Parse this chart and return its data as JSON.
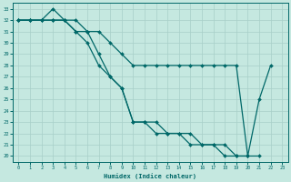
{
  "xlabel": "Humidex (Indice chaleur)",
  "bg_color": "#c5e8e0",
  "grid_color": "#a8cfc8",
  "line_color": "#006868",
  "xlim": [
    0,
    23
  ],
  "ylim": [
    19.5,
    33.5
  ],
  "xticks": [
    0,
    1,
    2,
    3,
    4,
    5,
    6,
    7,
    8,
    9,
    10,
    11,
    12,
    13,
    14,
    15,
    16,
    17,
    18,
    19,
    20,
    21,
    22,
    23
  ],
  "yticks": [
    20,
    21,
    22,
    23,
    24,
    25,
    26,
    27,
    28,
    29,
    30,
    31,
    32,
    33
  ],
  "s1_x": [
    0,
    1,
    2,
    3,
    4,
    5,
    6,
    7,
    8,
    9,
    10,
    11,
    12,
    13,
    14,
    15,
    16,
    17,
    18,
    19,
    20,
    21
  ],
  "s1_y": [
    32,
    32,
    32,
    33,
    32,
    31,
    31,
    29,
    27,
    26,
    23,
    23,
    23,
    22,
    22,
    22,
    21,
    21,
    21,
    20,
    20,
    20
  ],
  "s2_x": [
    0,
    1,
    2,
    3,
    4,
    5,
    6,
    7,
    8,
    9,
    10,
    11,
    12,
    13,
    14,
    15,
    16,
    17,
    18,
    19,
    20
  ],
  "s2_y": [
    32,
    32,
    32,
    32,
    32,
    31,
    30,
    28,
    27,
    26,
    23,
    23,
    22,
    22,
    22,
    21,
    21,
    21,
    20,
    20,
    20
  ],
  "s3_x": [
    0,
    1,
    2,
    3,
    4,
    5,
    6,
    7,
    8,
    9,
    10,
    11,
    12,
    13,
    14,
    15,
    16,
    17,
    18,
    19,
    20,
    21,
    22
  ],
  "s3_y": [
    32,
    32,
    32,
    32,
    32,
    32,
    31,
    31,
    30,
    29,
    28,
    28,
    28,
    28,
    28,
    28,
    28,
    28,
    28,
    28,
    20,
    25,
    28
  ]
}
